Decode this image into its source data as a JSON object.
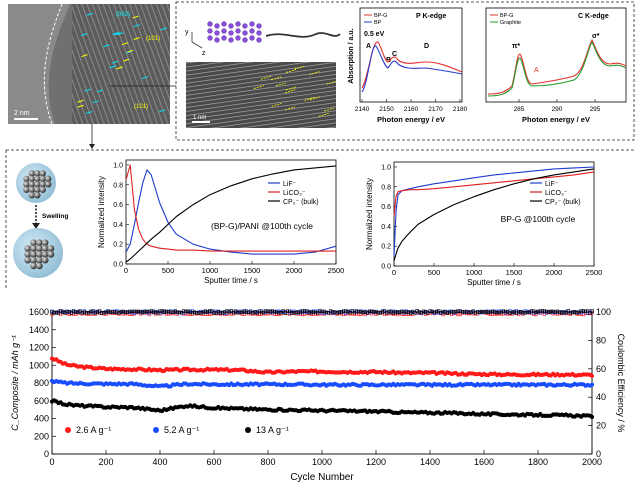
{
  "tem": {
    "scale_bar": "2 nm",
    "labels": [
      "(002)",
      "(101)",
      "(101)"
    ],
    "inset_scale": "1 nm"
  },
  "structure": {
    "axis_y": "y",
    "axis_z": "z"
  },
  "xanes_p": {
    "title": "P K-edge",
    "xlabel": "Photon energy / eV",
    "ylabel": "Absorption / a.u.",
    "xticks": [
      "2140",
      "2150",
      "2160",
      "2170",
      "2180"
    ],
    "legend": [
      "BP-G",
      "BP"
    ],
    "annotations": [
      "0.5 eV",
      "A",
      "B",
      "C",
      "D"
    ],
    "colors": {
      "BP-G": "#e03030",
      "BP": "#2a3ccf"
    }
  },
  "xanes_c": {
    "title": "C K-edge",
    "xlabel": "Photon energy / eV",
    "xticks": [
      "285",
      "290",
      "295"
    ],
    "legend": [
      "BP-G",
      "Graphite"
    ],
    "annotations": [
      "π*",
      "A",
      "σ*"
    ],
    "colors": {
      "BP-G": "#e03030",
      "Graphite": "#2a9a2a"
    }
  },
  "swelling": {
    "label": "Swelling"
  },
  "tof_left": {
    "title": "(BP-G)/PANI @100th cycle",
    "ylabel": "Normalized intensity",
    "xlabel": "Sputter time / s",
    "xticks": [
      "0",
      "500",
      "1000",
      "1500",
      "2000",
      "2500"
    ],
    "yticks": [
      "0.0",
      "0.2",
      "0.4",
      "0.6",
      "0.8",
      "1.0"
    ],
    "legend": [
      "LiF⁻",
      "LiCO₃⁻",
      "CP₂⁻ (bulk)"
    ]
  },
  "tof_right": {
    "title": "BP-G @100th cycle",
    "ylabel": "Normalized intensity",
    "xlabel": "Sputter time / s",
    "xticks": [
      "0",
      "500",
      "1000",
      "1500",
      "2000",
      "2500"
    ],
    "yticks": [
      "0.0",
      "0.2",
      "0.4",
      "0.6",
      "0.8",
      "1.0"
    ],
    "legend": [
      "LiF⁻",
      "LiCO₃⁻",
      "CP₂⁻ (bulk)"
    ]
  },
  "cycling": {
    "xlabel": "Cycle Number",
    "ylabel_left": "C_Composite / mAh g⁻¹",
    "ylabel_right": "Coulombic Efficiency / %",
    "xticks": [
      "0",
      "200",
      "400",
      "600",
      "800",
      "1000",
      "1200",
      "1400",
      "1600",
      "1800",
      "2000"
    ],
    "yticks_left": [
      "0",
      "200",
      "400",
      "600",
      "800",
      "1000",
      "1200",
      "1400",
      "1600"
    ],
    "yticks_right": [
      "0",
      "20",
      "40",
      "60",
      "80",
      "100"
    ],
    "legend": [
      "2.6 A g⁻¹",
      "5.2 A g⁻¹",
      "13 A g⁻¹"
    ],
    "colors": {
      "2.6": "#ff1a1a",
      "5.2": "#1a4dff",
      "13": "#000000"
    }
  },
  "chart_data": [
    {
      "type": "line",
      "panel": "tof_left",
      "title": "(BP-G)/PANI @100th cycle",
      "xlabel": "Sputter time / s",
      "ylabel": "Normalized intensity",
      "xlim": [
        0,
        2500
      ],
      "ylim": [
        0,
        1.05
      ],
      "x": [
        0,
        50,
        100,
        150,
        200,
        250,
        300,
        400,
        500,
        600,
        800,
        1000,
        1250,
        1500,
        1750,
        2000,
        2250,
        2500
      ],
      "series": [
        {
          "name": "LiF⁻",
          "color": "#1f3ccf",
          "values": [
            0.12,
            0.2,
            0.4,
            0.62,
            0.82,
            0.95,
            0.9,
            0.62,
            0.42,
            0.3,
            0.2,
            0.15,
            0.12,
            0.1,
            0.1,
            0.1,
            0.12,
            0.18
          ]
        },
        {
          "name": "LiCO₃⁻",
          "color": "#e02020",
          "values": [
            0.85,
            1.0,
            0.55,
            0.35,
            0.25,
            0.2,
            0.18,
            0.16,
            0.15,
            0.14,
            0.14,
            0.13,
            0.13,
            0.13,
            0.13,
            0.13,
            0.13,
            0.13
          ]
        },
        {
          "name": "CP₂⁻ (bulk)",
          "color": "#000000",
          "values": [
            0.02,
            0.05,
            0.09,
            0.13,
            0.17,
            0.21,
            0.25,
            0.32,
            0.4,
            0.48,
            0.6,
            0.7,
            0.79,
            0.86,
            0.91,
            0.95,
            0.97,
            0.99
          ]
        }
      ]
    },
    {
      "type": "line",
      "panel": "tof_right",
      "title": "BP-G @100th cycle",
      "xlabel": "Sputter time / s",
      "ylabel": "Normalized intensity",
      "xlim": [
        0,
        2500
      ],
      "ylim": [
        0,
        1.05
      ],
      "x": [
        0,
        25,
        50,
        100,
        200,
        300,
        500,
        750,
        1000,
        1250,
        1500,
        1750,
        2000,
        2250,
        2500
      ],
      "series": [
        {
          "name": "LiF⁻",
          "color": "#1f3ccf",
          "values": [
            0.1,
            0.55,
            0.72,
            0.76,
            0.78,
            0.8,
            0.83,
            0.86,
            0.89,
            0.92,
            0.94,
            0.96,
            0.98,
            0.99,
            1.0
          ]
        },
        {
          "name": "LiCO₃⁻",
          "color": "#e02020",
          "values": [
            0.5,
            0.7,
            0.75,
            0.76,
            0.77,
            0.77,
            0.78,
            0.8,
            0.82,
            0.84,
            0.86,
            0.88,
            0.9,
            0.92,
            0.95
          ]
        },
        {
          "name": "CP₂⁻ (bulk)",
          "color": "#000000",
          "values": [
            0.05,
            0.12,
            0.18,
            0.25,
            0.34,
            0.42,
            0.52,
            0.62,
            0.7,
            0.77,
            0.83,
            0.88,
            0.92,
            0.95,
            0.98
          ]
        }
      ]
    },
    {
      "type": "scatter",
      "panel": "cycling",
      "xlabel": "Cycle Number",
      "ylabel": "C_Composite / mAh g⁻¹",
      "ylabel_right": "Coulombic Efficiency / %",
      "xlim": [
        0,
        2000
      ],
      "ylim": [
        0,
        1600
      ],
      "ylim_right": [
        0,
        100
      ],
      "x": [
        0,
        50,
        100,
        200,
        300,
        400,
        500,
        600,
        700,
        800,
        900,
        1000,
        1100,
        1200,
        1300,
        1400,
        1500,
        1600,
        1700,
        1800,
        1900,
        2000
      ],
      "series": [
        {
          "name": "2.6 A g⁻¹",
          "color": "#ff1a1a",
          "values": [
            1080,
            1010,
            985,
            960,
            955,
            945,
            950,
            950,
            945,
            920,
            930,
            930,
            925,
            925,
            915,
            915,
            905,
            900,
            895,
            895,
            895,
            890
          ]
        },
        {
          "name": "5.2 A g⁻¹",
          "color": "#1a4dff",
          "values": [
            820,
            800,
            795,
            790,
            790,
            760,
            790,
            785,
            785,
            785,
            785,
            780,
            780,
            780,
            780,
            780,
            780,
            780,
            780,
            780,
            780,
            780
          ]
        },
        {
          "name": "13 A g⁻¹",
          "color": "#000000",
          "values": [
            600,
            560,
            545,
            530,
            525,
            490,
            545,
            520,
            510,
            500,
            495,
            490,
            485,
            480,
            470,
            465,
            460,
            450,
            445,
            440,
            435,
            425
          ]
        },
        {
          "name": "CE 2.6",
          "color": "#ff1a1a",
          "axis": "right",
          "values": [
            99,
            99,
            99,
            99,
            99,
            99,
            99,
            99,
            99,
            99,
            99,
            99,
            99,
            99,
            99,
            99,
            99,
            99,
            99,
            99,
            99,
            99
          ]
        },
        {
          "name": "CE 5.2",
          "color": "#1a4dff",
          "axis": "right",
          "values": [
            100,
            100,
            100,
            100,
            100,
            100,
            100,
            100,
            100,
            100,
            100,
            100,
            100,
            100,
            100,
            100,
            100,
            100,
            100,
            100,
            100,
            100
          ]
        },
        {
          "name": "CE 13",
          "color": "#000000",
          "axis": "right",
          "values": [
            100,
            100,
            100,
            100,
            100,
            100,
            100,
            100,
            100,
            100,
            100,
            100,
            100,
            100,
            100,
            100,
            100,
            100,
            100,
            100,
            100,
            100
          ]
        }
      ]
    }
  ]
}
